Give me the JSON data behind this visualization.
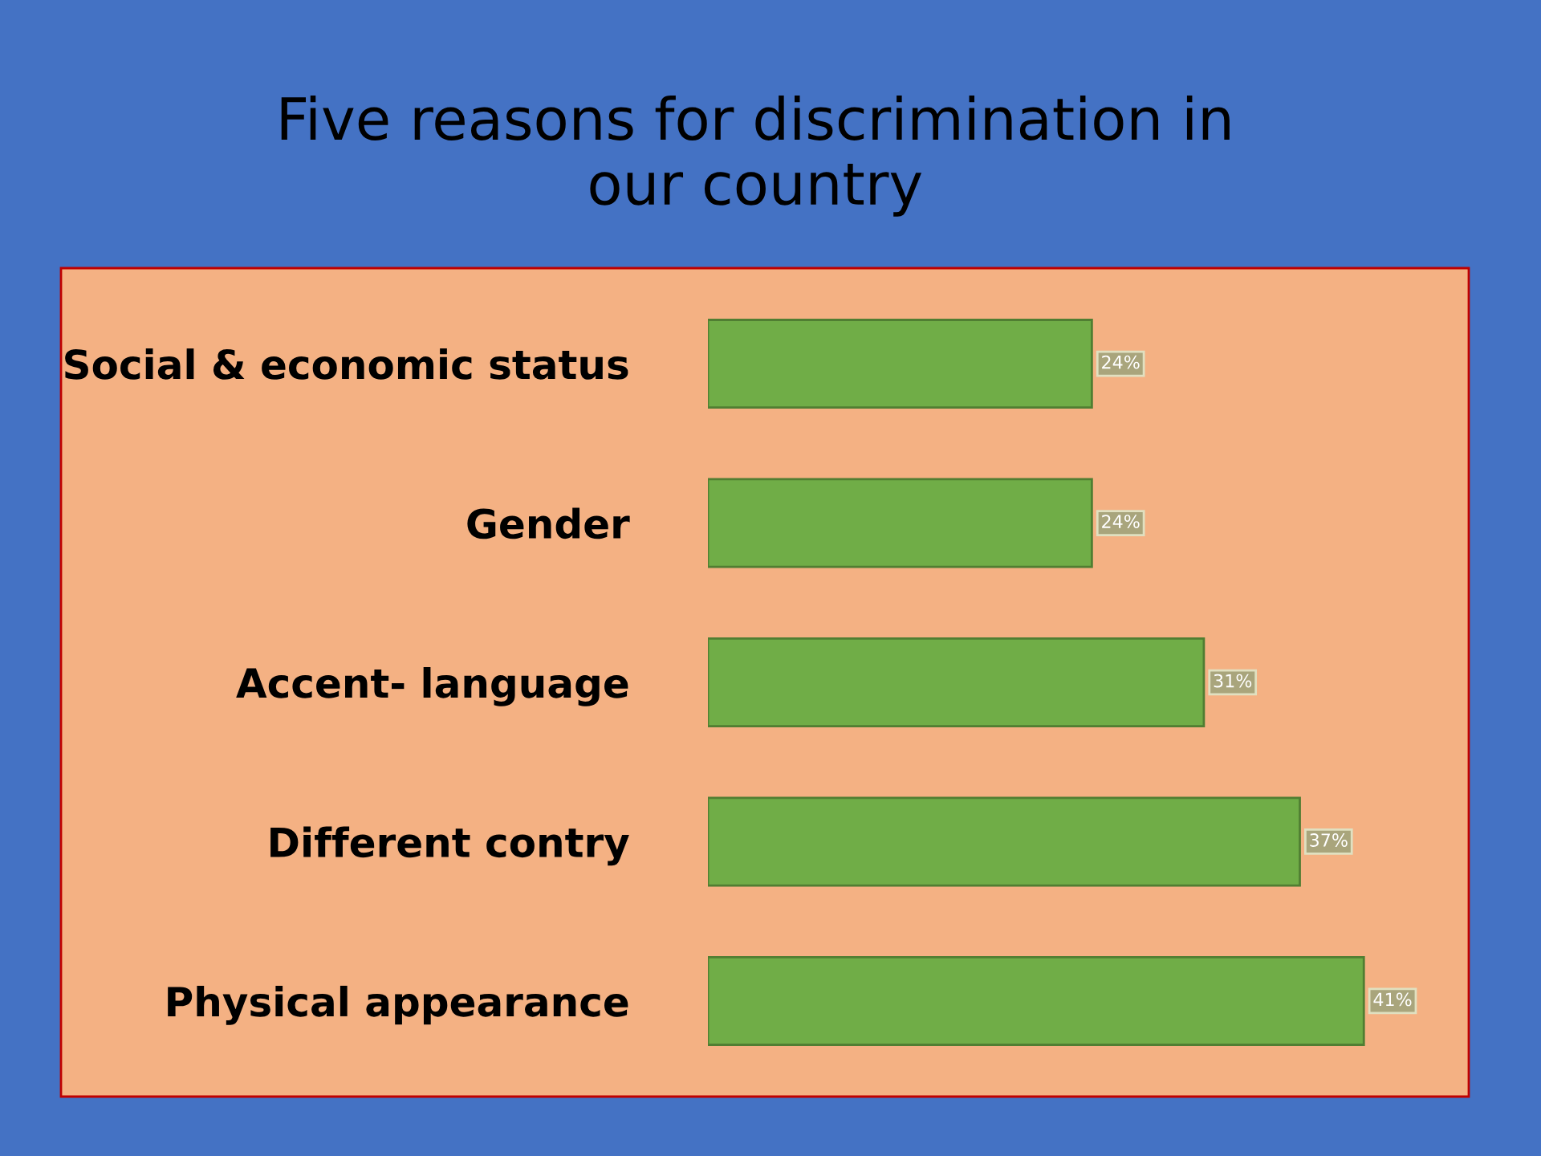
{
  "chart_data": {
    "type": "bar",
    "orientation": "horizontal",
    "title": "Five reasons for discrimination in\nour country",
    "categories": [
      "Social & economic status",
      "Gender",
      "Accent- language",
      "Different contry",
      "Physical appearance"
    ],
    "values": [
      24,
      24,
      31,
      37,
      41
    ],
    "value_labels": [
      "24%",
      "24%",
      "31%",
      "37%",
      "41%"
    ],
    "color": "#70ad47",
    "grid": false,
    "legend": false
  }
}
